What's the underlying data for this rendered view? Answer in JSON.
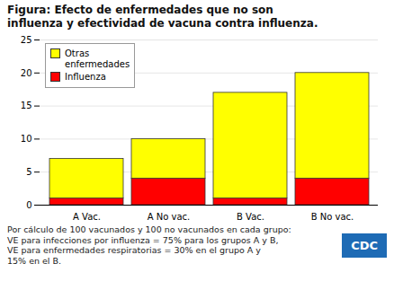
{
  "chart_data": {
    "type": "bar",
    "stacked": true,
    "title": "Figura: Efecto de enfermedades que no son\ninfluenza y efectividad de vacuna contra influenza.",
    "categories": [
      "A Vac.",
      "A No vac.",
      "B Vac.",
      "B No vac."
    ],
    "series": [
      {
        "name": "Influenza",
        "color": "#FF0000",
        "values": [
          1,
          4,
          1,
          4
        ]
      },
      {
        "name": "Otras\nenfermedades",
        "color": "#FFFF00",
        "values": [
          6,
          6,
          16,
          16
        ]
      }
    ],
    "ylim": [
      0,
      25
    ],
    "yticks": [
      0,
      5,
      10,
      15,
      20,
      25
    ],
    "grid": true,
    "legend": "upper left",
    "annotations": [
      "Por cálculo de 100 vacunados y 100 no vacunados en cada grupo:",
      "VE para infecciones por influenza = 75% para los grupos A y B,",
      "VE para enfermedades respiratorias = 30% en el grupo A y",
      "15% en el B.",
      "CDC"
    ]
  }
}
